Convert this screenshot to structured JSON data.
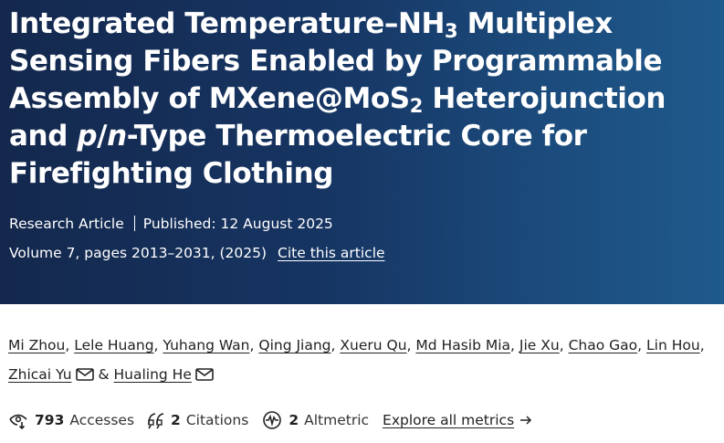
{
  "hero": {
    "title_parts": {
      "p1": "Integrated Temperature–NH",
      "sub1": "3",
      "p2": " Multiplex Sensing Fibers Enabled by Programmable Assembly of MXene@MoS",
      "sub2": "2",
      "p3": " Heterojunction and ",
      "p_italic": "p",
      "slash": "/",
      "n_italic": "n",
      "p4": "-Type Thermoelectric Core for Firefighting Clothing"
    },
    "article_type": "Research Article",
    "published": "Published: 12 August 2025",
    "volume": "Volume 7, pages 2013–2031, (2025)",
    "cite_label": "Cite this article"
  },
  "authors": [
    "Mi Zhou",
    "Lele Huang",
    "Yuhang Wan",
    "Qing Jiang",
    "Xueru Qu",
    "Md Hasib Mia",
    "Jie Xu",
    "Chao Gao",
    "Lin Hou",
    "Zhicai Yu",
    "Hualing He"
  ],
  "authors_sep": ",",
  "authors_amp": "&",
  "metrics": {
    "accesses_count": "793",
    "accesses_label": "Accesses",
    "citations_count": "2",
    "citations_label": "Citations",
    "altmetric_count": "2",
    "altmetric_label": "Altmetric",
    "explore_label": "Explore all metrics"
  },
  "icons": {
    "mail": "mail-icon",
    "accesses": "eye-download-icon",
    "citations": "quote-icon",
    "altmetric": "altmetric-wave-icon",
    "arrow": "arrow-right-icon"
  },
  "colors": {
    "hero_start": "#14284d",
    "hero_end": "#1f5a8c",
    "text": "#222222"
  }
}
